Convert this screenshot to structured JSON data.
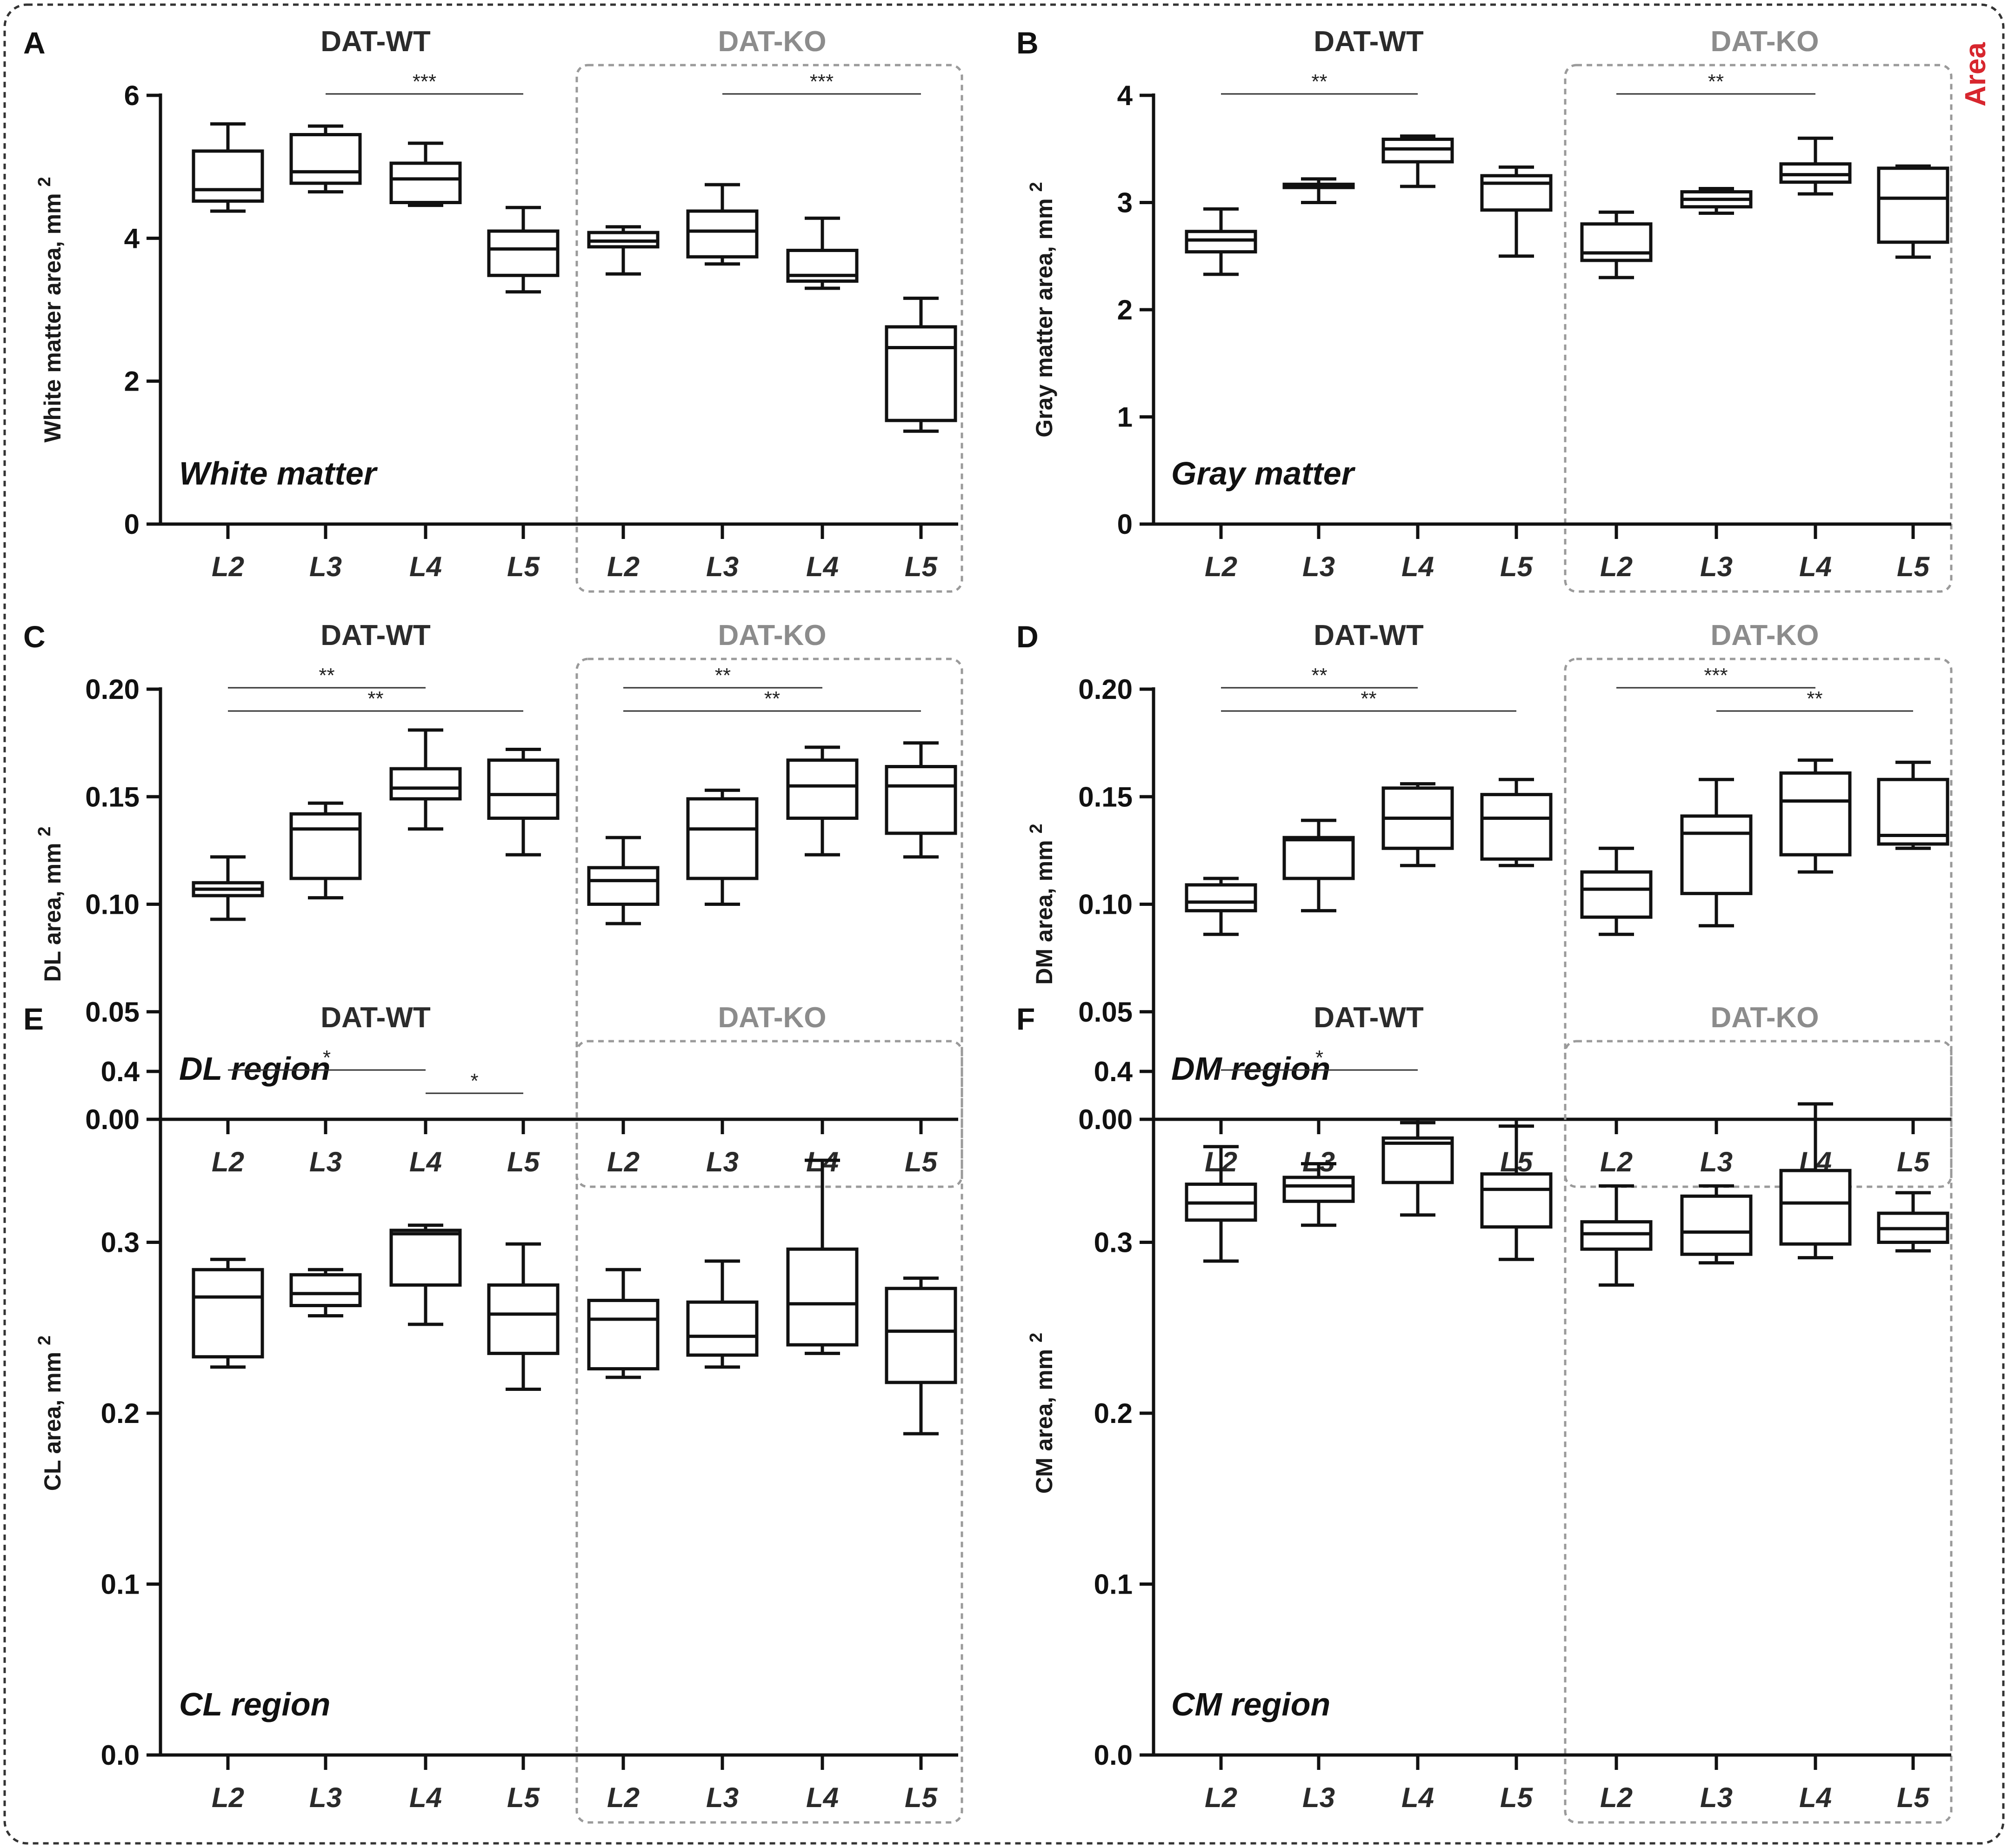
{
  "figure": {
    "corner_label": "Area",
    "colors": {
      "axis": "#111111",
      "ko_header": "#8c8c8c",
      "wt_header": "#2b2b2b",
      "accent": "#d7262e",
      "dash": "#9a9a9a"
    }
  },
  "chart_data": [
    {
      "letter": "A",
      "type": "box",
      "title": "White matter",
      "ylabel": "White matter area, mm",
      "ylabel_sup": "2",
      "ylim": [
        0,
        6
      ],
      "yticks": [
        "0",
        "2",
        "4",
        "6"
      ],
      "groups": [
        "DAT-WT",
        "DAT-KO"
      ],
      "categories": [
        "L2",
        "L3",
        "L4",
        "L5",
        "L2",
        "L3",
        "L4",
        "L5"
      ],
      "boxes": [
        {
          "min": 4.38,
          "q1": 4.52,
          "median": 4.68,
          "q3": 5.22,
          "max": 5.6
        },
        {
          "min": 4.65,
          "q1": 4.77,
          "median": 4.93,
          "q3": 5.45,
          "max": 5.57
        },
        {
          "min": 4.46,
          "q1": 4.5,
          "median": 4.83,
          "q3": 5.05,
          "max": 5.33
        },
        {
          "min": 3.25,
          "q1": 3.48,
          "median": 3.85,
          "q3": 4.1,
          "max": 4.43
        },
        {
          "min": 3.5,
          "q1": 3.88,
          "median": 3.96,
          "q3": 4.08,
          "max": 4.16
        },
        {
          "min": 3.64,
          "q1": 3.74,
          "median": 4.1,
          "q3": 4.38,
          "max": 4.75
        },
        {
          "min": 3.3,
          "q1": 3.4,
          "median": 3.48,
          "q3": 3.83,
          "max": 4.28
        },
        {
          "min": 1.3,
          "q1": 1.45,
          "median": 2.47,
          "q3": 2.76,
          "max": 3.16
        }
      ],
      "brackets": [
        {
          "from": 1,
          "to": 3,
          "label": "***",
          "level": 0
        },
        {
          "from": 5,
          "to": 7,
          "label": "***",
          "level": 0
        }
      ]
    },
    {
      "letter": "B",
      "type": "box",
      "title": "Gray matter",
      "ylabel": "Gray matter area, mm",
      "ylabel_sup": "2",
      "ylim": [
        0,
        4
      ],
      "yticks": [
        "0",
        "1",
        "2",
        "3",
        "4"
      ],
      "groups": [
        "DAT-WT",
        "DAT-KO"
      ],
      "categories": [
        "L2",
        "L3",
        "L4",
        "L5",
        "L2",
        "L3",
        "L4",
        "L5"
      ],
      "boxes": [
        {
          "min": 2.33,
          "q1": 2.54,
          "median": 2.65,
          "q3": 2.73,
          "max": 2.94
        },
        {
          "min": 3.0,
          "q1": 3.14,
          "median": 3.16,
          "q3": 3.17,
          "max": 3.22
        },
        {
          "min": 3.15,
          "q1": 3.38,
          "median": 3.5,
          "q3": 3.59,
          "max": 3.62
        },
        {
          "min": 2.5,
          "q1": 2.93,
          "median": 3.18,
          "q3": 3.25,
          "max": 3.33
        },
        {
          "min": 2.3,
          "q1": 2.46,
          "median": 2.53,
          "q3": 2.8,
          "max": 2.91
        },
        {
          "min": 2.9,
          "q1": 2.96,
          "median": 3.03,
          "q3": 3.1,
          "max": 3.13
        },
        {
          "min": 3.08,
          "q1": 3.19,
          "median": 3.26,
          "q3": 3.36,
          "max": 3.6
        },
        {
          "min": 2.49,
          "q1": 2.63,
          "median": 3.04,
          "q3": 3.32,
          "max": 3.34
        }
      ],
      "brackets": [
        {
          "from": 0,
          "to": 2,
          "label": "**",
          "level": 0
        },
        {
          "from": 4,
          "to": 6,
          "label": "**",
          "level": 0
        }
      ]
    },
    {
      "letter": "C",
      "type": "box",
      "title": "DL region",
      "ylabel": "DL area, mm",
      "ylabel_sup": "2",
      "ylim": [
        0,
        0.2
      ],
      "yticks": [
        "0.00",
        "0.05",
        "0.10",
        "0.15",
        "0.20"
      ],
      "groups": [
        "DAT-WT",
        "DAT-KO"
      ],
      "categories": [
        "L2",
        "L3",
        "L4",
        "L5",
        "L2",
        "L3",
        "L4",
        "L5"
      ],
      "boxes": [
        {
          "min": 0.093,
          "q1": 0.104,
          "median": 0.107,
          "q3": 0.11,
          "max": 0.122
        },
        {
          "min": 0.103,
          "q1": 0.112,
          "median": 0.135,
          "q3": 0.142,
          "max": 0.147
        },
        {
          "min": 0.135,
          "q1": 0.149,
          "median": 0.154,
          "q3": 0.163,
          "max": 0.181
        },
        {
          "min": 0.123,
          "q1": 0.14,
          "median": 0.151,
          "q3": 0.167,
          "max": 0.172
        },
        {
          "min": 0.091,
          "q1": 0.1,
          "median": 0.111,
          "q3": 0.117,
          "max": 0.131
        },
        {
          "min": 0.1,
          "q1": 0.112,
          "median": 0.135,
          "q3": 0.149,
          "max": 0.153
        },
        {
          "min": 0.123,
          "q1": 0.14,
          "median": 0.155,
          "q3": 0.167,
          "max": 0.173
        },
        {
          "min": 0.122,
          "q1": 0.133,
          "median": 0.155,
          "q3": 0.164,
          "max": 0.175
        }
      ],
      "brackets": [
        {
          "from": 0,
          "to": 2,
          "label": "**",
          "level": 0
        },
        {
          "from": 0,
          "to": 3,
          "label": "**",
          "level": 1
        },
        {
          "from": 4,
          "to": 6,
          "label": "**",
          "level": 0
        },
        {
          "from": 4,
          "to": 7,
          "label": "**",
          "level": 1
        }
      ]
    },
    {
      "letter": "D",
      "type": "box",
      "title": "DM region",
      "ylabel": "DM area, mm",
      "ylabel_sup": "2",
      "ylim": [
        0,
        0.2
      ],
      "yticks": [
        "0.00",
        "0.05",
        "0.10",
        "0.15",
        "0.20"
      ],
      "groups": [
        "DAT-WT",
        "DAT-KO"
      ],
      "categories": [
        "L2",
        "L3",
        "L4",
        "L5",
        "L2",
        "L3",
        "L4",
        "L5"
      ],
      "boxes": [
        {
          "min": 0.086,
          "q1": 0.097,
          "median": 0.101,
          "q3": 0.109,
          "max": 0.112
        },
        {
          "min": 0.097,
          "q1": 0.112,
          "median": 0.13,
          "q3": 0.131,
          "max": 0.139
        },
        {
          "min": 0.118,
          "q1": 0.126,
          "median": 0.14,
          "q3": 0.154,
          "max": 0.156
        },
        {
          "min": 0.118,
          "q1": 0.121,
          "median": 0.14,
          "q3": 0.151,
          "max": 0.158
        },
        {
          "min": 0.086,
          "q1": 0.094,
          "median": 0.107,
          "q3": 0.115,
          "max": 0.126
        },
        {
          "min": 0.09,
          "q1": 0.105,
          "median": 0.133,
          "q3": 0.141,
          "max": 0.158
        },
        {
          "min": 0.115,
          "q1": 0.123,
          "median": 0.148,
          "q3": 0.161,
          "max": 0.167
        },
        {
          "min": 0.126,
          "q1": 0.128,
          "median": 0.132,
          "q3": 0.158,
          "max": 0.166
        }
      ],
      "brackets": [
        {
          "from": 0,
          "to": 2,
          "label": "**",
          "level": 0
        },
        {
          "from": 0,
          "to": 3,
          "label": "**",
          "level": 1
        },
        {
          "from": 4,
          "to": 6,
          "label": "***",
          "level": 0
        },
        {
          "from": 5,
          "to": 7,
          "label": "**",
          "level": 1
        }
      ]
    },
    {
      "letter": "E",
      "type": "box",
      "title": "CL region",
      "ylabel": "CL area, mm",
      "ylabel_sup": "2",
      "ylim": [
        0,
        0.4
      ],
      "yticks": [
        "0.0",
        "0.1",
        "0.2",
        "0.3",
        "0.4"
      ],
      "groups": [
        "DAT-WT",
        "DAT-KO"
      ],
      "categories": [
        "L2",
        "L3",
        "L4",
        "L5",
        "L2",
        "L3",
        "L4",
        "L5"
      ],
      "boxes": [
        {
          "min": 0.227,
          "q1": 0.233,
          "median": 0.268,
          "q3": 0.284,
          "max": 0.29
        },
        {
          "min": 0.257,
          "q1": 0.263,
          "median": 0.27,
          "q3": 0.281,
          "max": 0.284
        },
        {
          "min": 0.252,
          "q1": 0.275,
          "median": 0.305,
          "q3": 0.307,
          "max": 0.31
        },
        {
          "min": 0.214,
          "q1": 0.235,
          "median": 0.258,
          "q3": 0.275,
          "max": 0.299
        },
        {
          "min": 0.221,
          "q1": 0.226,
          "median": 0.255,
          "q3": 0.266,
          "max": 0.284
        },
        {
          "min": 0.227,
          "q1": 0.234,
          "median": 0.245,
          "q3": 0.265,
          "max": 0.289
        },
        {
          "min": 0.235,
          "q1": 0.24,
          "median": 0.264,
          "q3": 0.296,
          "max": 0.348
        },
        {
          "min": 0.188,
          "q1": 0.218,
          "median": 0.248,
          "q3": 0.273,
          "max": 0.279
        }
      ],
      "brackets": [
        {
          "from": 0,
          "to": 2,
          "label": "*",
          "level": 0
        },
        {
          "from": 2,
          "to": 3,
          "label": "*",
          "level": 1
        }
      ]
    },
    {
      "letter": "F",
      "type": "box",
      "title": "CM region",
      "ylabel": "CM area, mm",
      "ylabel_sup": "2",
      "ylim": [
        0,
        0.4
      ],
      "yticks": [
        "0.0",
        "0.1",
        "0.2",
        "0.3",
        "0.4"
      ],
      "groups": [
        "DAT-WT",
        "DAT-KO"
      ],
      "categories": [
        "L2",
        "L3",
        "L4",
        "L5",
        "L2",
        "L3",
        "L4",
        "L5"
      ],
      "boxes": [
        {
          "min": 0.289,
          "q1": 0.313,
          "median": 0.323,
          "q3": 0.334,
          "max": 0.356
        },
        {
          "min": 0.31,
          "q1": 0.324,
          "median": 0.333,
          "q3": 0.338,
          "max": 0.346
        },
        {
          "min": 0.316,
          "q1": 0.335,
          "median": 0.358,
          "q3": 0.361,
          "max": 0.37
        },
        {
          "min": 0.29,
          "q1": 0.309,
          "median": 0.331,
          "q3": 0.34,
          "max": 0.368
        },
        {
          "min": 0.275,
          "q1": 0.296,
          "median": 0.305,
          "q3": 0.312,
          "max": 0.333
        },
        {
          "min": 0.288,
          "q1": 0.293,
          "median": 0.306,
          "q3": 0.327,
          "max": 0.333
        },
        {
          "min": 0.291,
          "q1": 0.299,
          "median": 0.323,
          "q3": 0.342,
          "max": 0.381
        },
        {
          "min": 0.295,
          "q1": 0.3,
          "median": 0.308,
          "q3": 0.317,
          "max": 0.329
        }
      ],
      "brackets": [
        {
          "from": 0,
          "to": 2,
          "label": "*",
          "level": 0
        }
      ]
    }
  ]
}
